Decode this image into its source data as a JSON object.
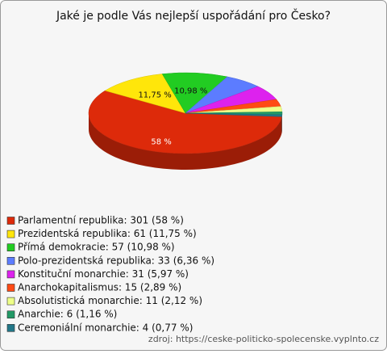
{
  "chart_data": {
    "type": "pie",
    "title": "Jaké je podle Vás nejlepší uspořádání pro Česko?",
    "categories": [
      "Parlamentní republika: 301 (58 %)",
      "Prezidentská republika: 61 (11,75 %)",
      "Přímá demokracie: 57 (10,98 %)",
      "Polo-prezidentská republika: 33 (6,36 %)",
      "Konstituční monarchie: 31 (5,97 %)",
      "Anarchokapitalismus: 15 (2,89 %)",
      "Absolutistická monarchie: 11 (2,12 %)",
      "Anarchie: 6 (1,16 %)",
      "Ceremoniální monarchie: 4 (0,77 %)"
    ],
    "values": [
      58,
      11.75,
      10.98,
      6.36,
      5.97,
      2.89,
      2.12,
      1.16,
      0.77
    ],
    "value_labels": [
      "58 %",
      "11,75 %",
      "10,98 %",
      null,
      null,
      null,
      null,
      null,
      null
    ],
    "colors": [
      "#dd2a0a",
      "#ffe60a",
      "#22cc22",
      "#5c7cff",
      "#dd22ee",
      "#ff4a14",
      "#eeff88",
      "#229966",
      "#227788"
    ],
    "source": "zdroj: https://ceske-politicko-spolecenske.vyplnto.cz"
  }
}
